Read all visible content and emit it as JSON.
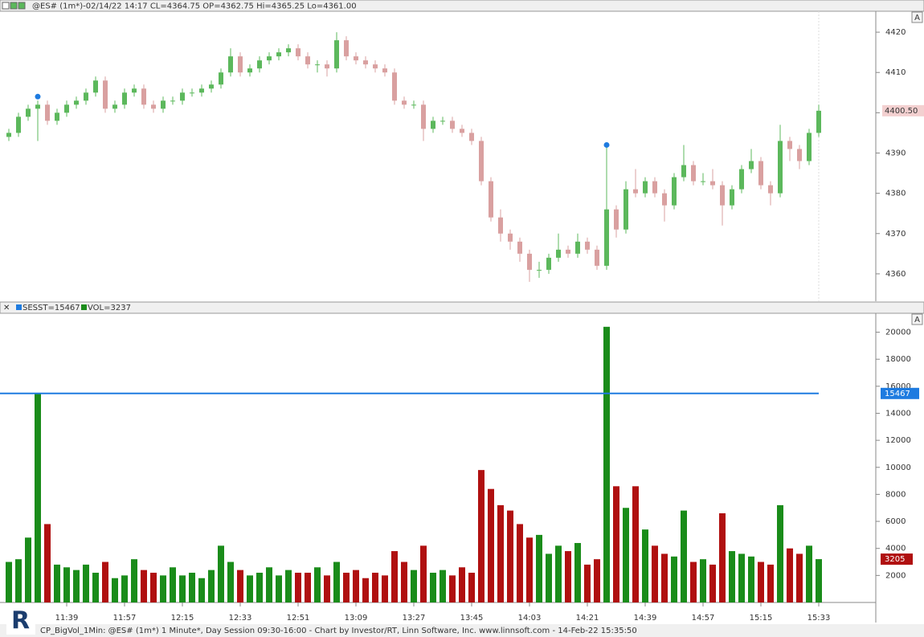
{
  "chart_data": [
    {
      "type": "candlestick",
      "title": "@ES# (1m*)-02/14/22 14:17 CL=4364.75 OP=4362.75 Hi=4365.25 Lo=4361.00",
      "up_color": "#5cb85c",
      "down_color": "#d9a0a0",
      "signal_color": "#1e7be0",
      "ylim": [
        4353.2,
        4425.2
      ],
      "yticks": [
        4360,
        4370,
        4380,
        4390,
        4400,
        4410,
        4420
      ],
      "open": [
        4394,
        4395,
        4399,
        4401,
        4402,
        4398,
        4400,
        4402,
        4403,
        4405,
        4408,
        4401,
        4402,
        4405,
        4406,
        4402,
        4401,
        4403,
        4403,
        4405,
        4405,
        4406,
        4407,
        4410,
        4414,
        4410,
        4411,
        4413,
        4414,
        4415,
        4416,
        4414,
        4412,
        4412,
        4411,
        4418,
        4414,
        4413,
        4412,
        4411,
        4410,
        4403,
        4402,
        4402,
        4396,
        4398,
        4398,
        4396,
        4395,
        4393,
        4383,
        4374,
        4370,
        4368,
        4365,
        4361,
        4361,
        4364,
        4366,
        4365,
        4368,
        4366,
        4362,
        4376,
        4371,
        4381,
        4380,
        4383,
        4380,
        4377,
        4384,
        4387,
        4383,
        4383,
        4382,
        4377,
        4381,
        4386,
        4388,
        4382,
        4380,
        4393,
        4391,
        4388,
        4395
      ],
      "high": [
        4396,
        4400,
        4402,
        4403,
        4403,
        4401,
        4403,
        4404,
        4406,
        4409,
        4409,
        4403,
        4406,
        4407,
        4407,
        4403,
        4404,
        4404,
        4406,
        4406,
        4407,
        4408,
        4411,
        4416,
        4415,
        4412,
        4414,
        4415,
        4416,
        4417,
        4417,
        4415,
        4413,
        4413,
        4420,
        4419,
        4415,
        4414,
        4413,
        4412,
        4411,
        4404,
        4403,
        4403,
        4399,
        4399,
        4399,
        4397,
        4396,
        4394,
        4384,
        4376,
        4371,
        4369,
        4366,
        4363,
        4365,
        4370,
        4367,
        4370,
        4369,
        4367,
        4392,
        4377,
        4383,
        4386,
        4384,
        4384,
        4381,
        4385,
        4392,
        4388,
        4385,
        4386,
        4383,
        4382,
        4387,
        4391,
        4389,
        4383,
        4397,
        4394,
        4392,
        4396,
        4402
      ],
      "low": [
        4393,
        4394,
        4398,
        4393,
        4397,
        4397,
        4399,
        4401,
        4402,
        4404,
        4400,
        4400,
        4401,
        4404,
        4401,
        4400,
        4400,
        4402,
        4402,
        4404,
        4404,
        4405,
        4406,
        4409,
        4409,
        4409,
        4410,
        4412,
        4413,
        4414,
        4413,
        4411,
        4410,
        4409,
        4410,
        4413,
        4412,
        4411,
        4410,
        4409,
        4402,
        4401,
        4401,
        4393,
        4395,
        4397,
        4395,
        4394,
        4392,
        4382,
        4373,
        4368,
        4366,
        4363,
        4358,
        4359,
        4360,
        4363,
        4364,
        4364,
        4365,
        4361,
        4361,
        4369,
        4370,
        4379,
        4379,
        4379,
        4373,
        4376,
        4383,
        4382,
        4382,
        4381,
        4372,
        4376,
        4380,
        4385,
        4381,
        4377,
        4379,
        4388,
        4386,
        4387,
        4394
      ],
      "close": [
        4395,
        4399,
        4401,
        4402,
        4398,
        4400,
        4402,
        4403,
        4405,
        4408,
        4401,
        4402,
        4405,
        4406,
        4402,
        4401,
        4403,
        4403,
        4405,
        4405,
        4406,
        4407,
        4410,
        4414,
        4410,
        4411,
        4413,
        4414,
        4415,
        4416,
        4414,
        4412,
        4412,
        4411,
        4418,
        4414,
        4413,
        4412,
        4411,
        4410,
        4403,
        4402,
        4402,
        4396,
        4398,
        4398,
        4396,
        4395,
        4393,
        4383,
        4374,
        4370,
        4368,
        4365,
        4361,
        4361,
        4364,
        4366,
        4365,
        4368,
        4366,
        4362,
        4376,
        4371,
        4381,
        4380,
        4383,
        4380,
        4377,
        4384,
        4387,
        4383,
        4383,
        4382,
        4377,
        4381,
        4386,
        4388,
        4382,
        4380,
        4393,
        4391,
        4388,
        4395,
        4400.5
      ],
      "last_label": "4400.50",
      "signals": [
        null,
        null,
        null,
        4404,
        null,
        null,
        null,
        null,
        null,
        null,
        null,
        null,
        null,
        null,
        null,
        null,
        null,
        null,
        null,
        null,
        null,
        null,
        null,
        null,
        null,
        null,
        null,
        null,
        null,
        null,
        null,
        null,
        null,
        null,
        null,
        null,
        null,
        null,
        null,
        null,
        null,
        null,
        null,
        null,
        null,
        null,
        null,
        null,
        null,
        null,
        null,
        null,
        null,
        null,
        null,
        null,
        null,
        null,
        null,
        null,
        null,
        null,
        4392,
        null,
        null,
        null,
        null,
        null,
        null,
        null,
        null,
        null,
        null,
        null,
        null,
        null,
        null,
        null,
        null,
        null,
        null,
        null,
        null,
        null,
        null
      ]
    },
    {
      "type": "bar",
      "categories": [
        null,
        null,
        null,
        null,
        null,
        null,
        "11:39",
        null,
        null,
        null,
        null,
        null,
        "11:57",
        null,
        null,
        null,
        null,
        null,
        "12:15",
        null,
        null,
        null,
        null,
        null,
        "12:33",
        null,
        null,
        null,
        null,
        null,
        "12:51",
        null,
        null,
        null,
        null,
        null,
        "13:09",
        null,
        null,
        null,
        null,
        null,
        "13:27",
        null,
        null,
        null,
        null,
        null,
        "13:45",
        null,
        null,
        null,
        null,
        null,
        "14:03",
        null,
        null,
        null,
        null,
        null,
        "14:21",
        null,
        null,
        null,
        null,
        null,
        "14:39",
        null,
        null,
        null,
        null,
        null,
        "14:57",
        null,
        null,
        null,
        null,
        null,
        "15:15",
        null,
        null,
        null,
        null,
        null,
        "15:33"
      ],
      "up_color": "#1a8c1a",
      "down_color": "#b01010",
      "series": [
        {
          "name": "VOL=3237",
          "color": "#1a8c1a",
          "values": [
            3000,
            3200,
            4800,
            15500,
            5800,
            2800,
            2600,
            2400,
            2800,
            2200,
            3000,
            1800,
            2000,
            3200,
            2400,
            2200,
            2000,
            2600,
            2000,
            2200,
            1800,
            2400,
            4200,
            3000,
            2400,
            2000,
            2200,
            2600,
            2000,
            2400,
            2200,
            2200,
            2600,
            2000,
            3000,
            2200,
            2400,
            1800,
            2200,
            2000,
            3800,
            3000,
            2400,
            4200,
            2200,
            2400,
            2000,
            2600,
            2200,
            9800,
            8400,
            7200,
            6800,
            5800,
            4800,
            5000,
            3600,
            4200,
            3800,
            4400,
            2800,
            3200,
            20400,
            8600,
            7000,
            8600,
            5400,
            4200,
            3600,
            3400,
            6800,
            3000,
            3200,
            2800,
            6600,
            3800,
            3600,
            3400,
            3000,
            2800,
            7200,
            4000,
            3600,
            4200,
            3205
          ]
        }
      ],
      "lines": [
        {
          "name": "SESST=15467",
          "color": "#1e7be0",
          "value": 15467,
          "value_label": "15467"
        }
      ],
      "last_label": "3205",
      "ylim": [
        0,
        21400
      ],
      "yticks": [
        2000,
        4000,
        6000,
        8000,
        10000,
        12000,
        14000,
        16000,
        18000,
        20000
      ]
    }
  ],
  "axis_button": "A",
  "footer": "CP_BigVol_1Min: @ES# (1m*) 1 Minute*, Day Session 09:30-16:00 - Chart by Investor/RT, Linn Software, Inc. www.linnsoft.com - 14-Feb-22 15:35:50"
}
